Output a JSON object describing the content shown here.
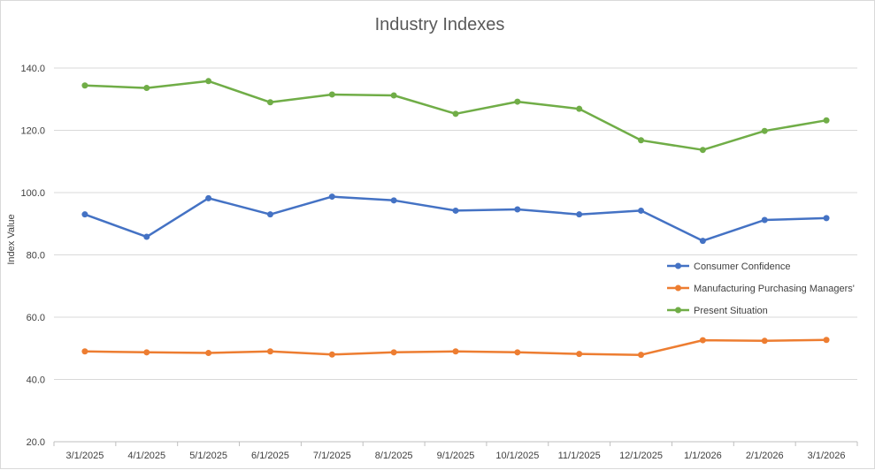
{
  "chart_data": {
    "type": "line",
    "title": "Industry Indexes",
    "xlabel": "",
    "ylabel": "Index Value",
    "ylim": [
      20,
      140
    ],
    "yticks": [
      "20.0",
      "40.0",
      "60.0",
      "80.0",
      "100.0",
      "120.0",
      "140.0"
    ],
    "categories": [
      "3/1/2025",
      "4/1/2025",
      "5/1/2025",
      "6/1/2025",
      "7/1/2025",
      "8/1/2025",
      "9/1/2025",
      "10/1/2025",
      "11/1/2025",
      "12/1/2025",
      "1/1/2026",
      "2/1/2026",
      "3/1/2026"
    ],
    "grid": true,
    "legend_position": "right",
    "series": [
      {
        "name": "Consumer Confidence",
        "color": "#4472c4",
        "values": [
          93.0,
          85.8,
          98.2,
          93.0,
          98.7,
          97.5,
          94.2,
          94.6,
          93.0,
          94.2,
          84.5,
          91.2,
          91.8
        ]
      },
      {
        "name": "Manufacturing Purchasing Managers'",
        "color": "#ed7d31",
        "values": [
          49.0,
          48.7,
          48.5,
          49.0,
          48.0,
          48.7,
          49.0,
          48.7,
          48.2,
          47.9,
          52.6,
          52.4,
          52.7
        ]
      },
      {
        "name": "Present Situation",
        "color": "#70ad47",
        "values": [
          134.4,
          133.6,
          135.8,
          129.0,
          131.5,
          131.2,
          125.3,
          129.2,
          126.9,
          116.8,
          113.7,
          119.8,
          123.2
        ]
      }
    ]
  }
}
